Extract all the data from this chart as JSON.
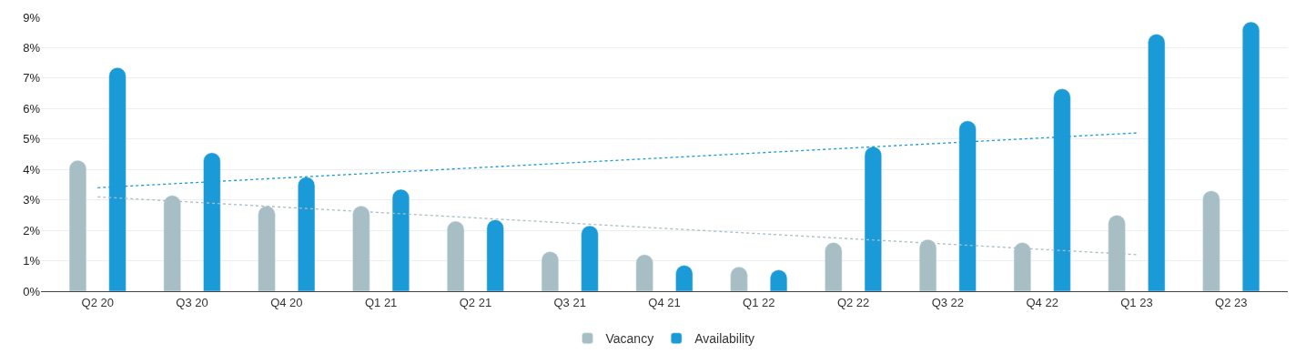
{
  "chart_data": {
    "type": "bar",
    "categories": [
      "Q2 20",
      "Q3 20",
      "Q4 20",
      "Q1 21",
      "Q2 21",
      "Q3 21",
      "Q4 21",
      "Q1 22",
      "Q2 22",
      "Q3 22",
      "Q4 22",
      "Q1 23",
      "Q2 23"
    ],
    "series": [
      {
        "name": "Vacancy",
        "color": "#a7bfc4",
        "values": [
          4.3,
          3.15,
          2.8,
          2.8,
          2.3,
          1.3,
          1.2,
          0.8,
          1.6,
          1.7,
          1.6,
          2.5,
          3.3
        ]
      },
      {
        "name": "Availability",
        "color": "#1a9ad6",
        "values": [
          7.35,
          4.55,
          3.75,
          3.35,
          2.35,
          2.15,
          0.85,
          0.7,
          4.75,
          5.6,
          6.65,
          8.45,
          8.85
        ]
      },
      {
        "type": "line",
        "color": "#1a9ad6",
        "line_style": "dotted",
        "marker": "none",
        "x": [
          "Q2 20",
          "Q1 23"
        ],
        "values": [
          3.4,
          5.2
        ]
      },
      {
        "type": "line",
        "color": "#a7bfc4",
        "line_style": "dotted",
        "marker": "none",
        "x": [
          "Q2 20",
          "Q1 23"
        ],
        "values": [
          3.1,
          1.2
        ]
      }
    ],
    "ylim": [
      0,
      9
    ],
    "yticks": [
      {
        "value": 0,
        "label": "0%"
      },
      {
        "value": 1,
        "label": "1%"
      },
      {
        "value": 2,
        "label": "2%"
      },
      {
        "value": 3,
        "label": "3%"
      },
      {
        "value": 4,
        "label": "4%"
      },
      {
        "value": 5,
        "label": "5%"
      },
      {
        "value": 6,
        "label": "6%"
      },
      {
        "value": 7,
        "label": "7%"
      },
      {
        "value": 8,
        "label": "8%"
      },
      {
        "value": 9,
        "label": "9%"
      }
    ],
    "grid": "y",
    "legend": "bottom"
  }
}
